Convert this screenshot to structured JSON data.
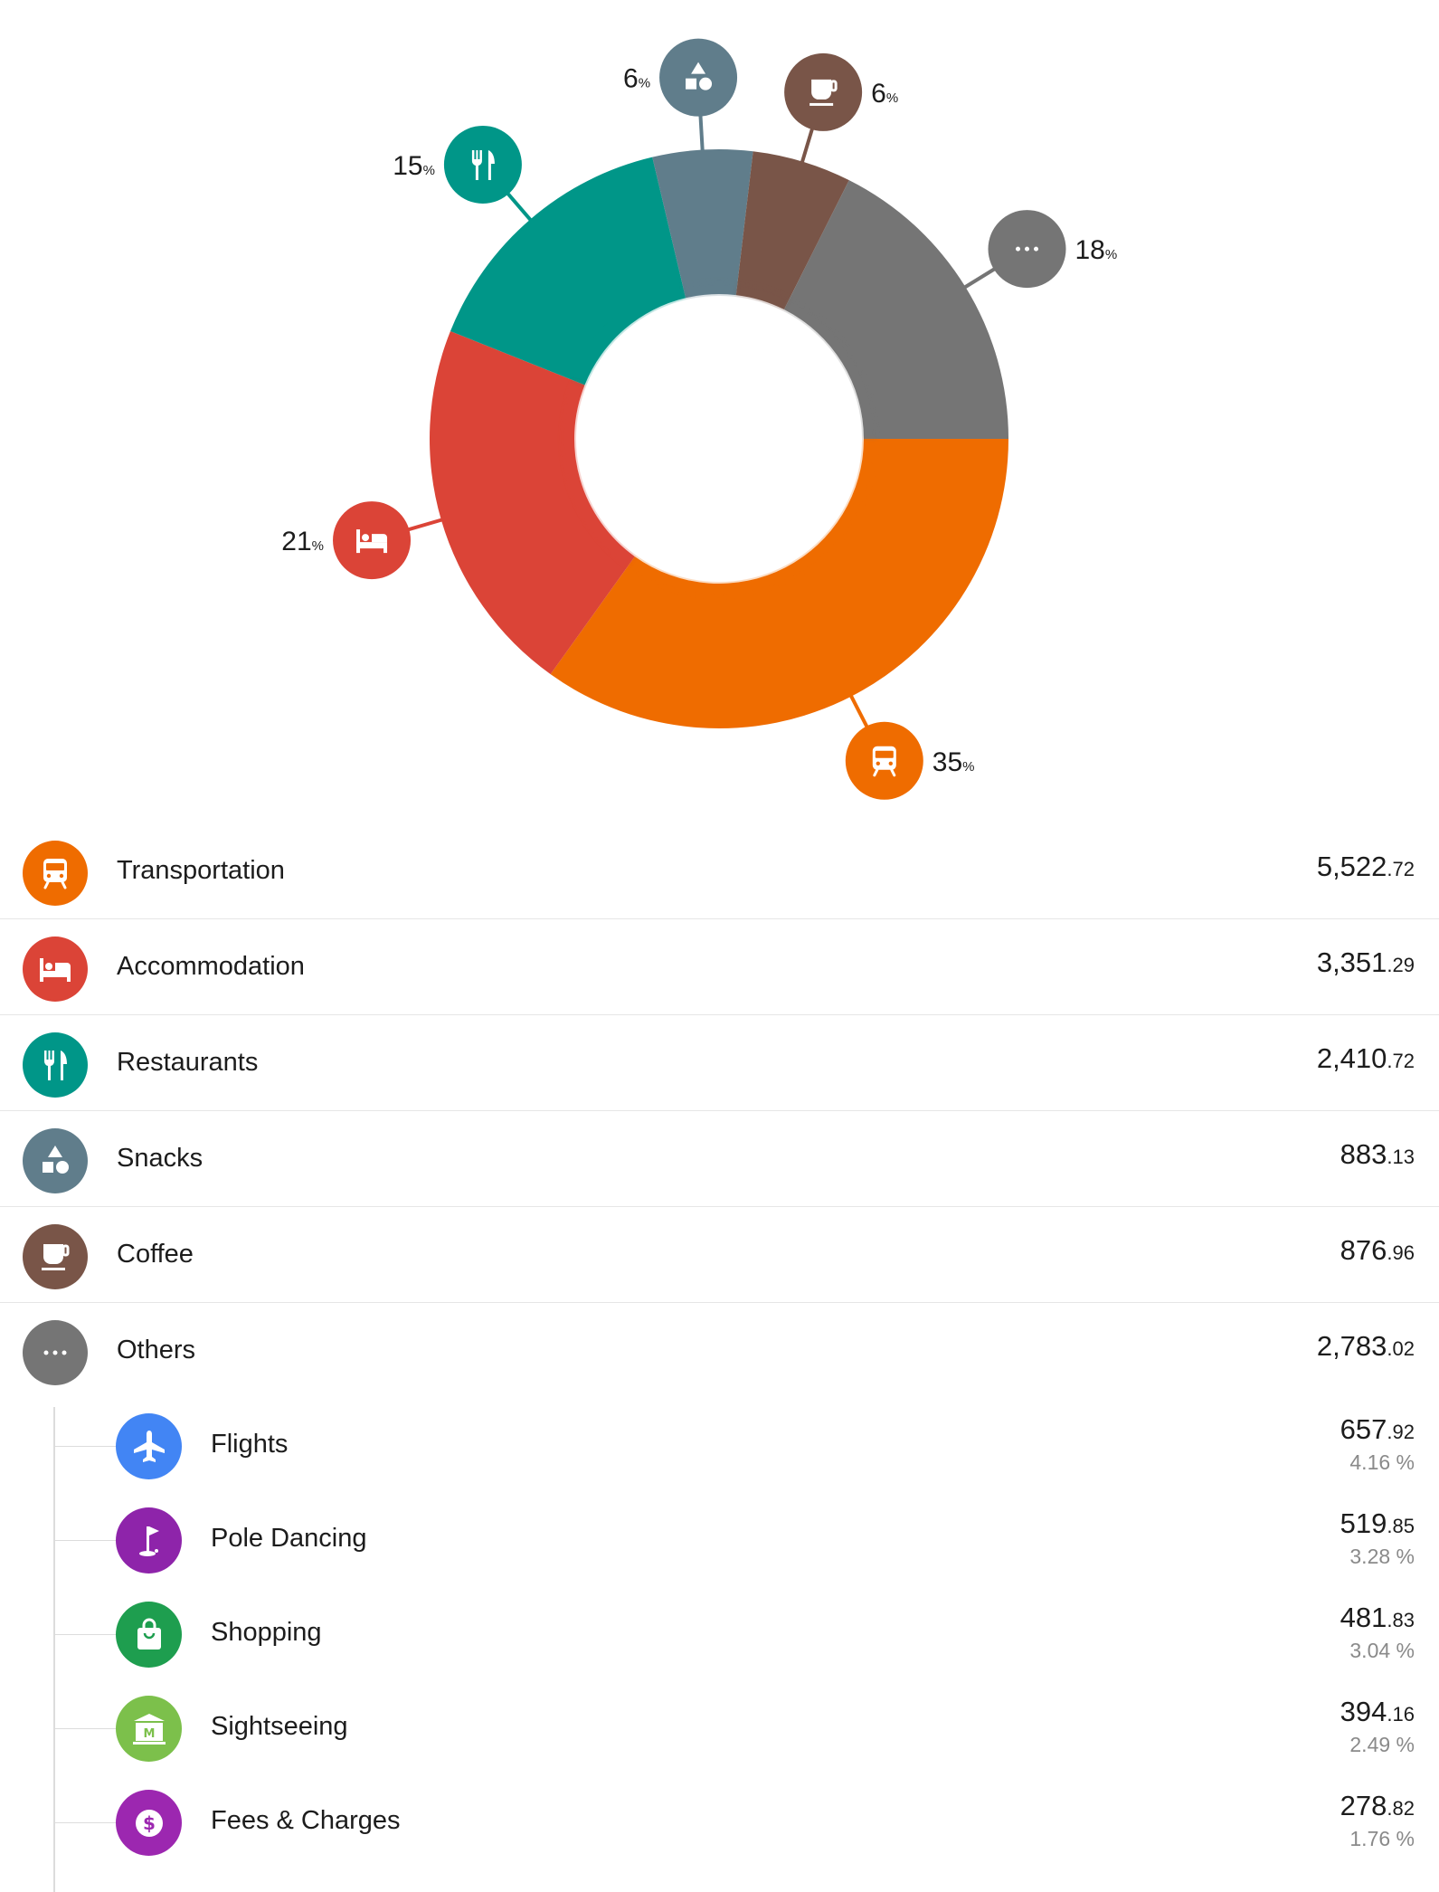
{
  "chart_data": {
    "type": "donut",
    "slices": [
      {
        "name": "Transportation",
        "percent_label": "35",
        "value": 5522.72,
        "color": "#EF6C00",
        "icon": "bus-icon"
      },
      {
        "name": "Accommodation",
        "percent_label": "21",
        "value": 3351.29,
        "color": "#DB4437",
        "icon": "bed-icon"
      },
      {
        "name": "Restaurants",
        "percent_label": "15",
        "value": 2410.72,
        "color": "#009688",
        "icon": "fork-knife-icon"
      },
      {
        "name": "Snacks",
        "percent_label": "6",
        "value": 883.13,
        "color": "#607D8B",
        "icon": "shapes-icon"
      },
      {
        "name": "Coffee",
        "percent_label": "6",
        "value": 876.96,
        "color": "#795548",
        "icon": "coffee-cup-icon"
      },
      {
        "name": "Others",
        "percent_label": "18",
        "value": 2783.02,
        "color": "#757575",
        "icon": "more-dots-icon"
      }
    ],
    "percent_suffix": "%"
  },
  "categories": [
    {
      "label": "Transportation",
      "amount_int": "5,522",
      "amount_dec": ".72",
      "color": "#EF6C00",
      "icon": "bus-icon"
    },
    {
      "label": "Accommodation",
      "amount_int": "3,351",
      "amount_dec": ".29",
      "color": "#DB4437",
      "icon": "bed-icon"
    },
    {
      "label": "Restaurants",
      "amount_int": "2,410",
      "amount_dec": ".72",
      "color": "#009688",
      "icon": "fork-knife-icon"
    },
    {
      "label": "Snacks",
      "amount_int": "883",
      "amount_dec": ".13",
      "color": "#607D8B",
      "icon": "shapes-icon"
    },
    {
      "label": "Coffee",
      "amount_int": "876",
      "amount_dec": ".96",
      "color": "#795548",
      "icon": "coffee-cup-icon"
    },
    {
      "label": "Others",
      "amount_int": "2,783",
      "amount_dec": ".02",
      "color": "#757575",
      "icon": "more-dots-icon"
    }
  ],
  "others_breakdown": [
    {
      "label": "Flights",
      "amount_int": "657",
      "amount_dec": ".92",
      "percent": "4.16 %",
      "color": "#4285F4",
      "icon": "airplane-icon"
    },
    {
      "label": "Pole Dancing",
      "amount_int": "519",
      "amount_dec": ".85",
      "percent": "3.28 %",
      "color": "#8E24AA",
      "icon": "golf-flag-icon"
    },
    {
      "label": "Shopping",
      "amount_int": "481",
      "amount_dec": ".83",
      "percent": "3.04 %",
      "color": "#1E9E4F",
      "icon": "shopping-bag-icon"
    },
    {
      "label": "Sightseeing",
      "amount_int": "394",
      "amount_dec": ".16",
      "percent": "2.49 %",
      "color": "#7CC04B",
      "icon": "museum-icon"
    },
    {
      "label": "Fees & Charges",
      "amount_int": "278",
      "amount_dec": ".82",
      "percent": "1.76 %",
      "color": "#9C27B0",
      "icon": "dollar-coin-icon"
    }
  ]
}
